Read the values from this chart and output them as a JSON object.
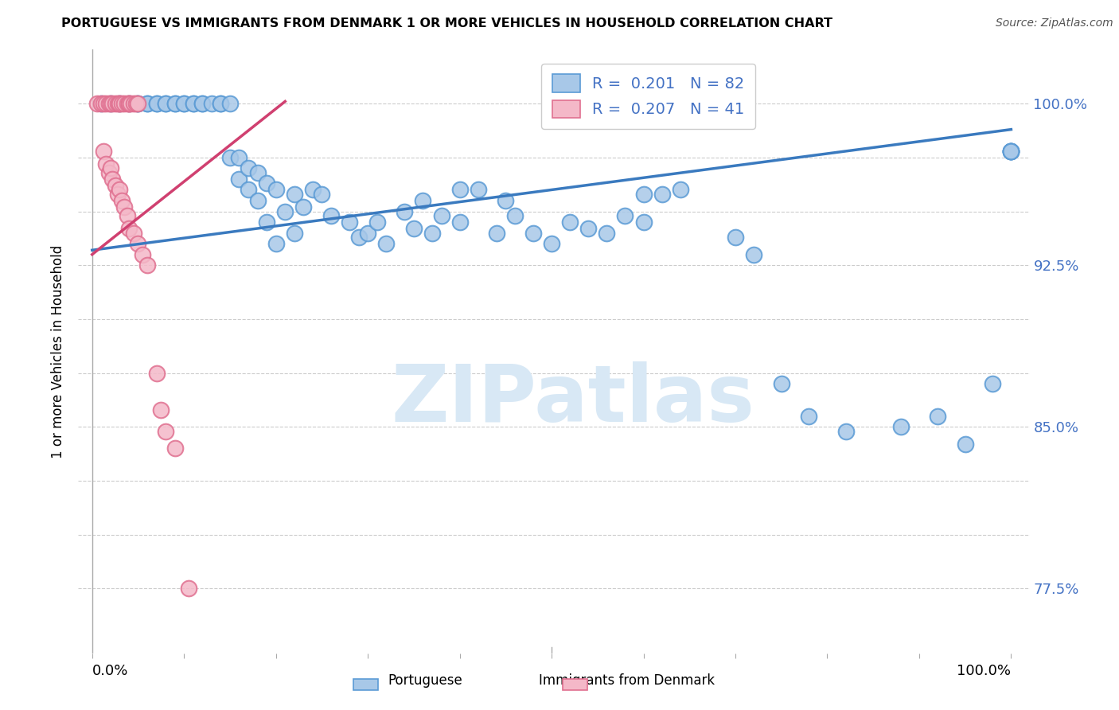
{
  "title": "PORTUGUESE VS IMMIGRANTS FROM DENMARK 1 OR MORE VEHICLES IN HOUSEHOLD CORRELATION CHART",
  "source": "Source: ZipAtlas.com",
  "ylabel": "1 or more Vehicles in Household",
  "blue_color": "#a8c8e8",
  "blue_edge_color": "#5b9bd5",
  "pink_color": "#f4b8c8",
  "pink_edge_color": "#e07090",
  "blue_line_color": "#3a7abf",
  "pink_line_color": "#d04070",
  "watermark_text": "ZIPatlas",
  "watermark_color": "#d8e8f5",
  "ytick_vals": [
    0.775,
    0.8,
    0.825,
    0.85,
    0.875,
    0.9,
    0.925,
    0.95,
    0.975,
    1.0
  ],
  "ytick_labels": [
    "77.5%",
    "",
    "",
    "85.0%",
    "",
    "",
    "92.5%",
    "",
    "",
    "100.0%"
  ],
  "ylim": [
    0.745,
    1.025
  ],
  "xlim": [
    -0.015,
    1.02
  ],
  "blue_line_x0": 0.0,
  "blue_line_y0": 0.932,
  "blue_line_x1": 1.0,
  "blue_line_y1": 0.988,
  "pink_line_x0": 0.0,
  "pink_line_y0": 0.93,
  "pink_line_x1": 0.21,
  "pink_line_y1": 1.001,
  "blue_x": [
    0.01,
    0.02,
    0.03,
    0.04,
    0.05,
    0.05,
    0.06,
    0.06,
    0.07,
    0.07,
    0.08,
    0.08,
    0.09,
    0.09,
    0.1,
    0.1,
    0.11,
    0.11,
    0.12,
    0.12,
    0.13,
    0.14,
    0.14,
    0.15,
    0.15,
    0.16,
    0.16,
    0.17,
    0.17,
    0.18,
    0.18,
    0.19,
    0.19,
    0.2,
    0.2,
    0.21,
    0.22,
    0.22,
    0.23,
    0.24,
    0.25,
    0.26,
    0.28,
    0.29,
    0.3,
    0.31,
    0.32,
    0.34,
    0.35,
    0.36,
    0.37,
    0.38,
    0.4,
    0.4,
    0.42,
    0.44,
    0.45,
    0.46,
    0.48,
    0.5,
    0.52,
    0.54,
    0.56,
    0.58,
    0.6,
    0.6,
    0.62,
    0.64,
    0.7,
    0.72,
    0.75,
    0.78,
    0.82,
    0.88,
    0.92,
    0.95,
    0.98,
    1.0,
    1.0,
    1.0,
    1.0,
    1.0
  ],
  "blue_y": [
    1.0,
    1.0,
    1.0,
    1.0,
    1.0,
    1.0,
    1.0,
    1.0,
    1.0,
    1.0,
    1.0,
    1.0,
    1.0,
    1.0,
    1.0,
    1.0,
    1.0,
    1.0,
    1.0,
    1.0,
    1.0,
    1.0,
    1.0,
    1.0,
    0.975,
    0.975,
    0.965,
    0.97,
    0.96,
    0.968,
    0.955,
    0.963,
    0.945,
    0.96,
    0.935,
    0.95,
    0.958,
    0.94,
    0.952,
    0.96,
    0.958,
    0.948,
    0.945,
    0.938,
    0.94,
    0.945,
    0.935,
    0.95,
    0.942,
    0.955,
    0.94,
    0.948,
    0.96,
    0.945,
    0.96,
    0.94,
    0.955,
    0.948,
    0.94,
    0.935,
    0.945,
    0.942,
    0.94,
    0.948,
    0.945,
    0.958,
    0.958,
    0.96,
    0.938,
    0.93,
    0.87,
    0.855,
    0.848,
    0.85,
    0.855,
    0.842,
    0.87,
    0.978,
    0.978,
    0.978,
    0.978,
    0.978
  ],
  "pink_x": [
    0.005,
    0.01,
    0.012,
    0.015,
    0.018,
    0.02,
    0.022,
    0.025,
    0.028,
    0.03,
    0.03,
    0.032,
    0.035,
    0.038,
    0.04,
    0.04,
    0.042,
    0.045,
    0.048,
    0.05,
    0.012,
    0.015,
    0.018,
    0.02,
    0.022,
    0.025,
    0.028,
    0.03,
    0.032,
    0.035,
    0.038,
    0.04,
    0.045,
    0.05,
    0.055,
    0.06,
    0.07,
    0.075,
    0.08,
    0.09,
    0.105
  ],
  "pink_y": [
    1.0,
    1.0,
    1.0,
    1.0,
    1.0,
    1.0,
    1.0,
    1.0,
    1.0,
    1.0,
    1.0,
    1.0,
    1.0,
    1.0,
    1.0,
    1.0,
    1.0,
    1.0,
    1.0,
    1.0,
    0.978,
    0.972,
    0.968,
    0.97,
    0.965,
    0.962,
    0.958,
    0.96,
    0.955,
    0.952,
    0.948,
    0.942,
    0.94,
    0.935,
    0.93,
    0.925,
    0.875,
    0.858,
    0.848,
    0.84,
    0.775
  ]
}
